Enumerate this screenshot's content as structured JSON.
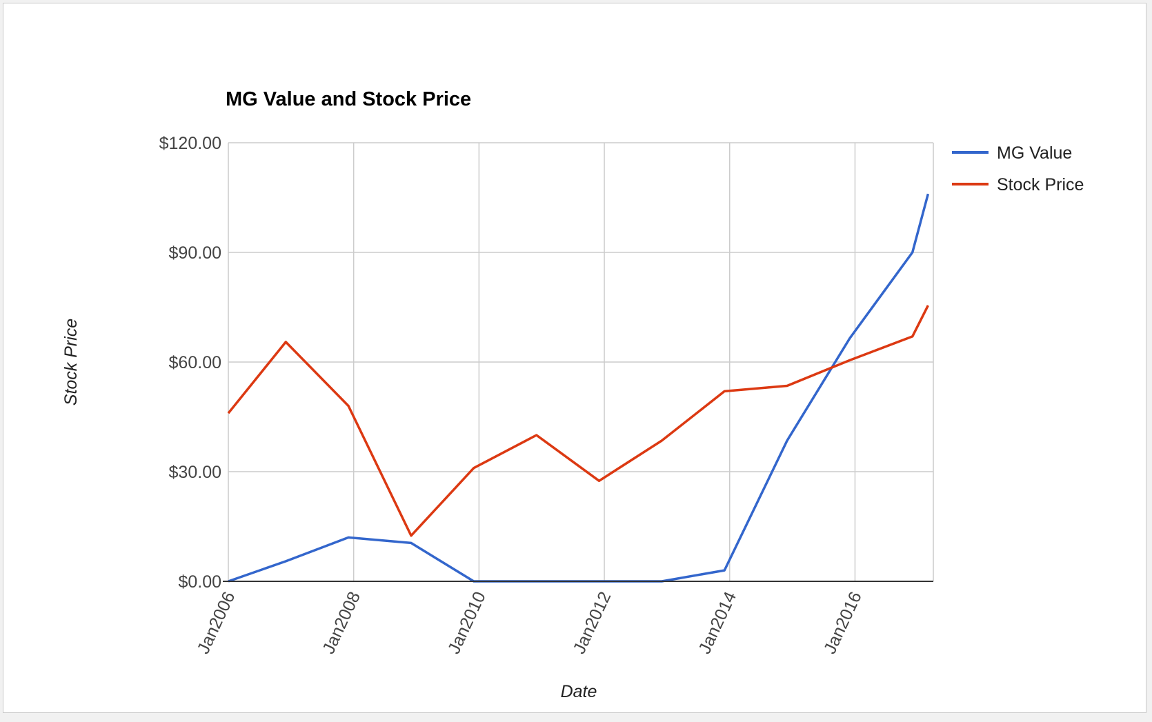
{
  "chart_data": {
    "type": "line",
    "title": "MG Value and Stock Price",
    "xlabel": "Date",
    "ylabel": "Stock Price",
    "x_tick_labels": [
      "Jan2006",
      "Jan2008",
      "Jan2010",
      "Jan2012",
      "Jan2014",
      "Jan2016"
    ],
    "y_tick_labels": [
      "$0.00",
      "$30.00",
      "$60.00",
      "$90.00",
      "$120.00"
    ],
    "y_ticks": [
      0,
      30,
      60,
      90,
      120
    ],
    "ylim": [
      0,
      120
    ],
    "x_range": [
      "2006-01",
      "2017-04"
    ],
    "x": [
      "2006-01",
      "2006-12",
      "2007-12",
      "2008-12",
      "2009-12",
      "2010-12",
      "2011-12",
      "2012-12",
      "2013-12",
      "2014-12",
      "2015-12",
      "2016-12",
      "2017-03"
    ],
    "series": [
      {
        "name": "MG Value",
        "color": "#3366cc",
        "values": [
          0.0,
          5.5,
          12.0,
          10.5,
          0.0,
          0.0,
          0.0,
          0.0,
          3.0,
          38.5,
          66.5,
          90.0,
          106.0
        ]
      },
      {
        "name": "Stock Price",
        "color": "#dc3912",
        "values": [
          46.0,
          65.5,
          48.0,
          12.5,
          31.0,
          40.0,
          27.5,
          38.5,
          52.0,
          53.5,
          60.5,
          67.0,
          75.5
        ]
      }
    ],
    "grid": true,
    "legend_position": "right"
  }
}
